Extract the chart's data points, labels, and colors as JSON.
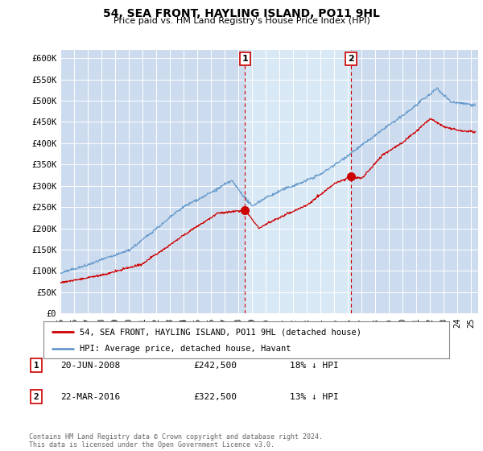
{
  "title": "54, SEA FRONT, HAYLING ISLAND, PO11 9HL",
  "subtitle": "Price paid vs. HM Land Registry's House Price Index (HPI)",
  "red_label": "54, SEA FRONT, HAYLING ISLAND, PO11 9HL (detached house)",
  "blue_label": "HPI: Average price, detached house, Havant",
  "annotation1": {
    "num": "1",
    "date": "20-JUN-2008",
    "price": "£242,500",
    "pct": "18% ↓ HPI",
    "x_year": 2008.47
  },
  "annotation2": {
    "num": "2",
    "date": "22-MAR-2016",
    "price": "£322,500",
    "pct": "13% ↓ HPI",
    "x_year": 2016.22
  },
  "footer": "Contains HM Land Registry data © Crown copyright and database right 2024.\nThis data is licensed under the Open Government Licence v3.0.",
  "ylim": [
    0,
    620000
  ],
  "yticks": [
    0,
    50000,
    100000,
    150000,
    200000,
    250000,
    300000,
    350000,
    400000,
    450000,
    500000,
    550000,
    600000
  ],
  "ytick_labels": [
    "£0",
    "£50K",
    "£100K",
    "£150K",
    "£200K",
    "£250K",
    "£300K",
    "£350K",
    "£400K",
    "£450K",
    "£500K",
    "£550K",
    "£600K"
  ],
  "bg_color": "#ccdcee",
  "highlight_color": "#d8e8f5",
  "red_color": "#cc0000",
  "blue_color": "#6699cc",
  "vline_color": "#cc0000",
  "marker_color": "#cc0000",
  "grid_color": "#ffffff",
  "xtick_years": [
    1995,
    1996,
    1997,
    1998,
    1999,
    2000,
    2001,
    2002,
    2003,
    2004,
    2005,
    2006,
    2007,
    2008,
    2009,
    2010,
    2011,
    2012,
    2013,
    2014,
    2015,
    2016,
    2017,
    2018,
    2019,
    2020,
    2021,
    2022,
    2023,
    2024,
    2025
  ],
  "xtick_labels": [
    "95",
    "96",
    "97",
    "98",
    "99",
    "00",
    "01",
    "02",
    "03",
    "04",
    "05",
    "06",
    "07",
    "08",
    "09",
    "10",
    "11",
    "12",
    "13",
    "14",
    "15",
    "16",
    "17",
    "18",
    "19",
    "20",
    "21",
    "22",
    "23",
    "24",
    "25"
  ]
}
